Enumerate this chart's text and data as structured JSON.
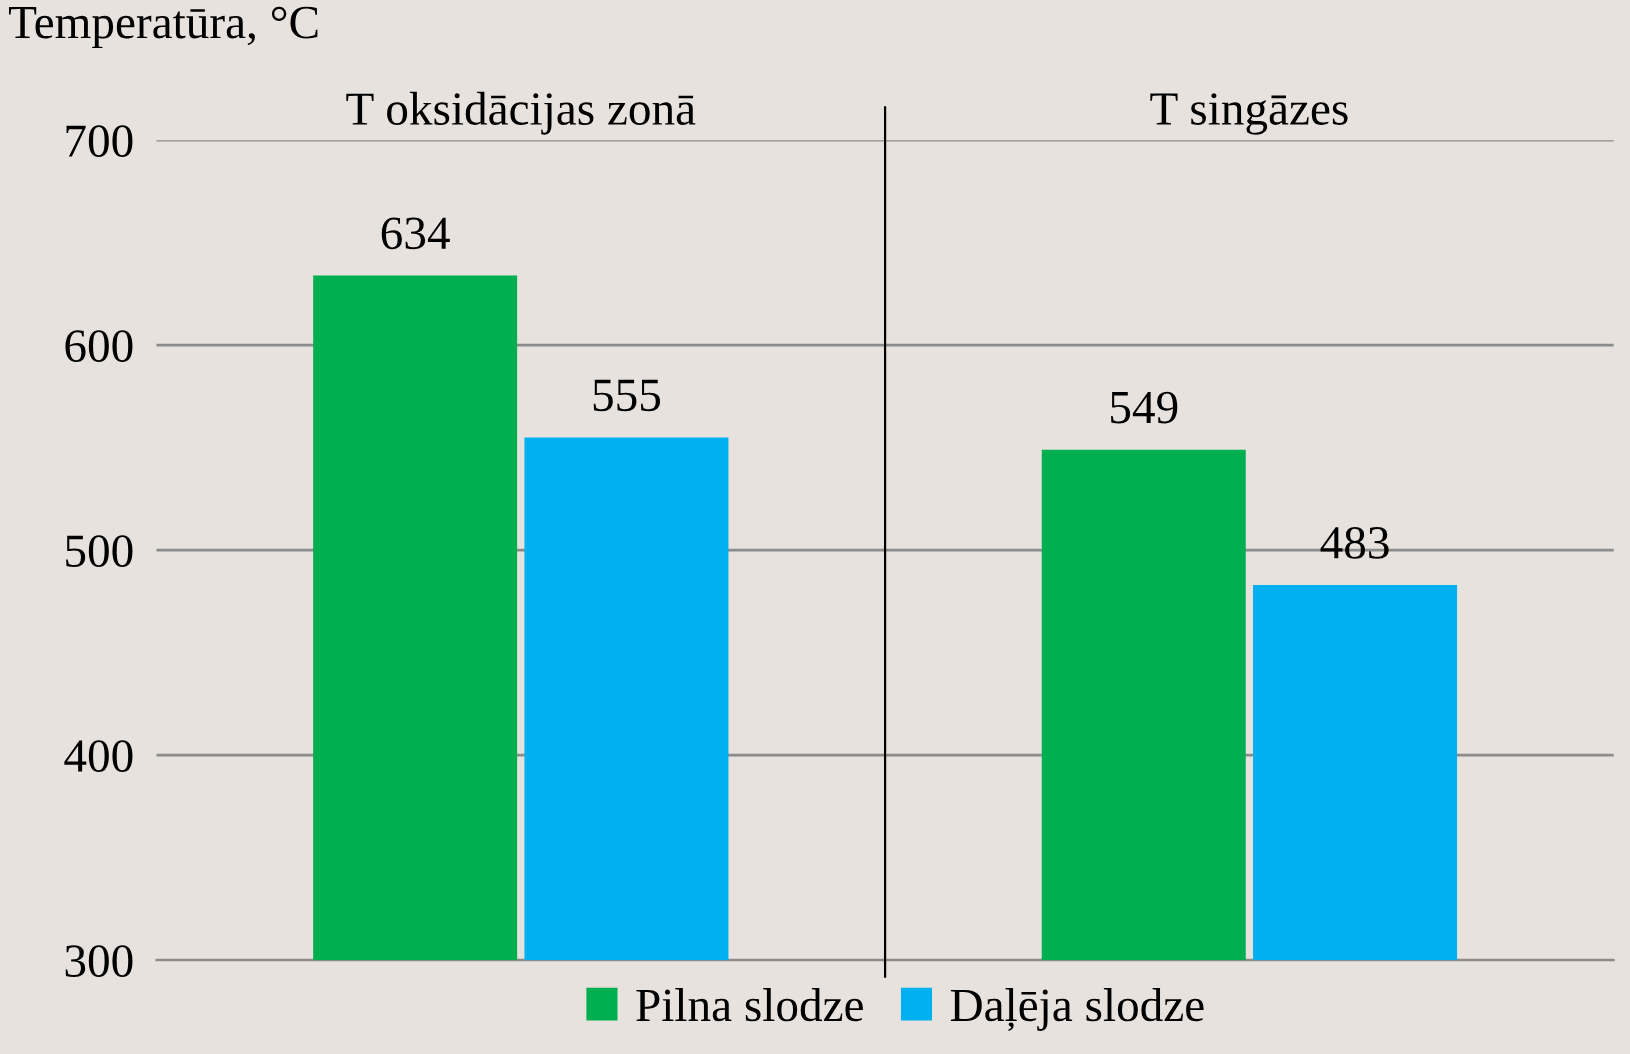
{
  "chart_data": [
    {
      "type": "bar",
      "ylabel": "Temperatūra, °C",
      "categories": [
        "T oksidācijas zonā"
      ],
      "series": [
        {
          "name": "Pilna slodze",
          "color": "#00b050",
          "values": [
            634
          ]
        },
        {
          "name": "Daļēja slodze",
          "color": "#00b0f0",
          "values": [
            555
          ]
        }
      ],
      "ylim": [
        300,
        700
      ],
      "yticks": [
        300,
        400,
        500,
        600,
        700
      ],
      "grid": "y",
      "legend": "bottom",
      "data_labels": true
    },
    {
      "type": "bar",
      "categories": [
        "T singāzes"
      ],
      "series": [
        {
          "color": "#00b050",
          "values": [
            549
          ]
        },
        {
          "color": "#00b0f0",
          "values": [
            483
          ]
        }
      ],
      "ylim": [
        300,
        700
      ],
      "tick_labels": "x",
      "grid": "y",
      "data_labels": true
    }
  ]
}
